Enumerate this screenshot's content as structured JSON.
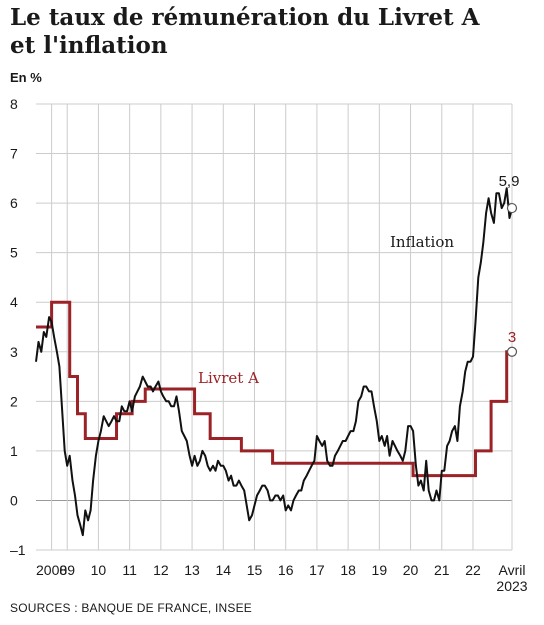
{
  "title_line1": "Le taux de rémunération du Livret A",
  "title_line2": "et l'inflation",
  "unit": "En %",
  "source": "SOURCES : BANQUE DE FRANCE, INSEE",
  "colors": {
    "inflation": "#111111",
    "livret": "#9b2226",
    "grid": "#cccccc",
    "text": "#1a1a1a"
  },
  "chart_data": {
    "type": "line",
    "title": "Le taux de rémunération du Livret A et l'inflation",
    "ylabel": "En %",
    "ylim": [
      -1,
      8
    ],
    "xlim": [
      2008.0,
      2023.25
    ],
    "grid": true,
    "y_ticks": [
      -1,
      0,
      1,
      2,
      3,
      4,
      5,
      6,
      7,
      8
    ],
    "x_ticks": [
      {
        "x": 2008.5,
        "label": "2008"
      },
      {
        "x": 2009.0,
        "label": "09"
      },
      {
        "x": 2010.0,
        "label": "10"
      },
      {
        "x": 2011.0,
        "label": "11"
      },
      {
        "x": 2012.0,
        "label": "12"
      },
      {
        "x": 2013.0,
        "label": "13"
      },
      {
        "x": 2014.0,
        "label": "14"
      },
      {
        "x": 2015.0,
        "label": "15"
      },
      {
        "x": 2016.0,
        "label": "16"
      },
      {
        "x": 2017.0,
        "label": "17"
      },
      {
        "x": 2018.0,
        "label": "18"
      },
      {
        "x": 2019.0,
        "label": "19"
      },
      {
        "x": 2020.0,
        "label": "20"
      },
      {
        "x": 2021.0,
        "label": "21"
      },
      {
        "x": 2022.0,
        "label": "22"
      },
      {
        "x": 2023.25,
        "label": "Avril",
        "label2": "2023"
      }
    ],
    "series": [
      {
        "name": "Inflation",
        "end_label": "5,9",
        "points": [
          [
            2008.0,
            2.8
          ],
          [
            2008.08,
            3.2
          ],
          [
            2008.17,
            3.0
          ],
          [
            2008.25,
            3.4
          ],
          [
            2008.33,
            3.3
          ],
          [
            2008.42,
            3.7
          ],
          [
            2008.5,
            3.6
          ],
          [
            2008.58,
            3.3
          ],
          [
            2008.67,
            3.0
          ],
          [
            2008.75,
            2.7
          ],
          [
            2008.83,
            1.9
          ],
          [
            2008.92,
            1.0
          ],
          [
            2009.0,
            0.7
          ],
          [
            2009.08,
            0.9
          ],
          [
            2009.17,
            0.4
          ],
          [
            2009.25,
            0.1
          ],
          [
            2009.33,
            -0.3
          ],
          [
            2009.42,
            -0.5
          ],
          [
            2009.5,
            -0.7
          ],
          [
            2009.58,
            -0.2
          ],
          [
            2009.67,
            -0.4
          ],
          [
            2009.75,
            -0.2
          ],
          [
            2009.83,
            0.4
          ],
          [
            2009.92,
            0.9
          ],
          [
            2010.0,
            1.2
          ],
          [
            2010.08,
            1.4
          ],
          [
            2010.17,
            1.7
          ],
          [
            2010.25,
            1.6
          ],
          [
            2010.33,
            1.5
          ],
          [
            2010.42,
            1.6
          ],
          [
            2010.5,
            1.7
          ],
          [
            2010.58,
            1.6
          ],
          [
            2010.67,
            1.6
          ],
          [
            2010.75,
            1.9
          ],
          [
            2010.83,
            1.8
          ],
          [
            2010.92,
            1.8
          ],
          [
            2011.0,
            2.0
          ],
          [
            2011.08,
            1.8
          ],
          [
            2011.17,
            2.1
          ],
          [
            2011.25,
            2.2
          ],
          [
            2011.33,
            2.3
          ],
          [
            2011.42,
            2.5
          ],
          [
            2011.5,
            2.4
          ],
          [
            2011.58,
            2.3
          ],
          [
            2011.67,
            2.3
          ],
          [
            2011.75,
            2.2
          ],
          [
            2011.83,
            2.3
          ],
          [
            2011.92,
            2.4
          ],
          [
            2012.0,
            2.2
          ],
          [
            2012.08,
            2.1
          ],
          [
            2012.17,
            2.0
          ],
          [
            2012.25,
            2.0
          ],
          [
            2012.33,
            1.9
          ],
          [
            2012.42,
            1.9
          ],
          [
            2012.5,
            2.1
          ],
          [
            2012.58,
            1.8
          ],
          [
            2012.67,
            1.4
          ],
          [
            2012.75,
            1.3
          ],
          [
            2012.83,
            1.2
          ],
          [
            2012.92,
            0.9
          ],
          [
            2013.0,
            0.7
          ],
          [
            2013.08,
            0.9
          ],
          [
            2013.17,
            0.7
          ],
          [
            2013.25,
            0.8
          ],
          [
            2013.33,
            1.0
          ],
          [
            2013.42,
            0.9
          ],
          [
            2013.5,
            0.7
          ],
          [
            2013.58,
            0.6
          ],
          [
            2013.67,
            0.7
          ],
          [
            2013.75,
            0.6
          ],
          [
            2013.83,
            0.8
          ],
          [
            2013.92,
            0.7
          ],
          [
            2014.0,
            0.7
          ],
          [
            2014.08,
            0.6
          ],
          [
            2014.17,
            0.4
          ],
          [
            2014.25,
            0.5
          ],
          [
            2014.33,
            0.3
          ],
          [
            2014.42,
            0.3
          ],
          [
            2014.5,
            0.4
          ],
          [
            2014.58,
            0.3
          ],
          [
            2014.67,
            0.2
          ],
          [
            2014.75,
            -0.1
          ],
          [
            2014.83,
            -0.4
          ],
          [
            2014.92,
            -0.3
          ],
          [
            2015.0,
            -0.1
          ],
          [
            2015.08,
            0.1
          ],
          [
            2015.17,
            0.2
          ],
          [
            2015.25,
            0.3
          ],
          [
            2015.33,
            0.3
          ],
          [
            2015.42,
            0.2
          ],
          [
            2015.5,
            0.0
          ],
          [
            2015.58,
            0.0
          ],
          [
            2015.67,
            0.1
          ],
          [
            2015.75,
            0.1
          ],
          [
            2015.83,
            0.0
          ],
          [
            2015.92,
            0.1
          ],
          [
            2016.0,
            -0.2
          ],
          [
            2016.08,
            -0.1
          ],
          [
            2016.17,
            -0.2
          ],
          [
            2016.25,
            0.0
          ],
          [
            2016.33,
            0.1
          ],
          [
            2016.42,
            0.2
          ],
          [
            2016.5,
            0.2
          ],
          [
            2016.58,
            0.4
          ],
          [
            2016.67,
            0.5
          ],
          [
            2016.75,
            0.6
          ],
          [
            2016.83,
            0.7
          ],
          [
            2016.92,
            0.8
          ],
          [
            2017.0,
            1.3
          ],
          [
            2017.08,
            1.2
          ],
          [
            2017.17,
            1.1
          ],
          [
            2017.25,
            1.2
          ],
          [
            2017.33,
            0.8
          ],
          [
            2017.42,
            0.7
          ],
          [
            2017.5,
            0.7
          ],
          [
            2017.58,
            0.9
          ],
          [
            2017.67,
            1.0
          ],
          [
            2017.75,
            1.1
          ],
          [
            2017.83,
            1.2
          ],
          [
            2017.92,
            1.2
          ],
          [
            2018.0,
            1.3
          ],
          [
            2018.08,
            1.4
          ],
          [
            2018.17,
            1.4
          ],
          [
            2018.25,
            1.6
          ],
          [
            2018.33,
            2.0
          ],
          [
            2018.42,
            2.1
          ],
          [
            2018.5,
            2.3
          ],
          [
            2018.58,
            2.3
          ],
          [
            2018.67,
            2.2
          ],
          [
            2018.75,
            2.2
          ],
          [
            2018.83,
            1.9
          ],
          [
            2018.92,
            1.6
          ],
          [
            2019.0,
            1.2
          ],
          [
            2019.08,
            1.3
          ],
          [
            2019.17,
            1.1
          ],
          [
            2019.25,
            1.3
          ],
          [
            2019.33,
            0.9
          ],
          [
            2019.42,
            1.2
          ],
          [
            2019.5,
            1.1
          ],
          [
            2019.58,
            1.0
          ],
          [
            2019.67,
            0.9
          ],
          [
            2019.75,
            0.8
          ],
          [
            2019.83,
            1.0
          ],
          [
            2019.92,
            1.5
          ],
          [
            2020.0,
            1.5
          ],
          [
            2020.08,
            1.4
          ],
          [
            2020.17,
            0.7
          ],
          [
            2020.25,
            0.3
          ],
          [
            2020.33,
            0.4
          ],
          [
            2020.42,
            0.2
          ],
          [
            2020.5,
            0.8
          ],
          [
            2020.58,
            0.2
          ],
          [
            2020.67,
            0.0
          ],
          [
            2020.75,
            0.0
          ],
          [
            2020.83,
            0.2
          ],
          [
            2020.92,
            0.0
          ],
          [
            2021.0,
            0.6
          ],
          [
            2021.08,
            0.6
          ],
          [
            2021.17,
            1.1
          ],
          [
            2021.25,
            1.2
          ],
          [
            2021.33,
            1.4
          ],
          [
            2021.42,
            1.5
          ],
          [
            2021.5,
            1.2
          ],
          [
            2021.58,
            1.9
          ],
          [
            2021.67,
            2.2
          ],
          [
            2021.75,
            2.6
          ],
          [
            2021.83,
            2.8
          ],
          [
            2021.92,
            2.8
          ],
          [
            2022.0,
            2.9
          ],
          [
            2022.08,
            3.6
          ],
          [
            2022.17,
            4.5
          ],
          [
            2022.25,
            4.8
          ],
          [
            2022.33,
            5.2
          ],
          [
            2022.42,
            5.8
          ],
          [
            2022.5,
            6.1
          ],
          [
            2022.58,
            5.8
          ],
          [
            2022.67,
            5.6
          ],
          [
            2022.75,
            6.2
          ],
          [
            2022.83,
            6.2
          ],
          [
            2022.92,
            5.9
          ],
          [
            2023.0,
            6.0
          ],
          [
            2023.08,
            6.3
          ],
          [
            2023.17,
            5.7
          ],
          [
            2023.25,
            5.9
          ]
        ]
      },
      {
        "name": "Livret A",
        "end_label": "3",
        "steps": [
          [
            2008.0,
            3.5
          ],
          [
            2008.08,
            3.5
          ],
          [
            2008.5,
            4.0
          ],
          [
            2009.08,
            2.5
          ],
          [
            2009.33,
            1.75
          ],
          [
            2009.58,
            1.25
          ],
          [
            2010.58,
            1.75
          ],
          [
            2011.08,
            2.0
          ],
          [
            2011.5,
            2.25
          ],
          [
            2013.08,
            1.75
          ],
          [
            2013.58,
            1.25
          ],
          [
            2014.58,
            1.0
          ],
          [
            2015.58,
            0.75
          ],
          [
            2020.08,
            0.5
          ],
          [
            2022.08,
            1.0
          ],
          [
            2022.58,
            2.0
          ],
          [
            2023.08,
            3.0
          ],
          [
            2023.25,
            3.0
          ]
        ]
      }
    ],
    "annotations": [
      {
        "text": "Inflation",
        "series": "Inflation"
      },
      {
        "text": "Livret A",
        "series": "Livret A"
      }
    ]
  }
}
